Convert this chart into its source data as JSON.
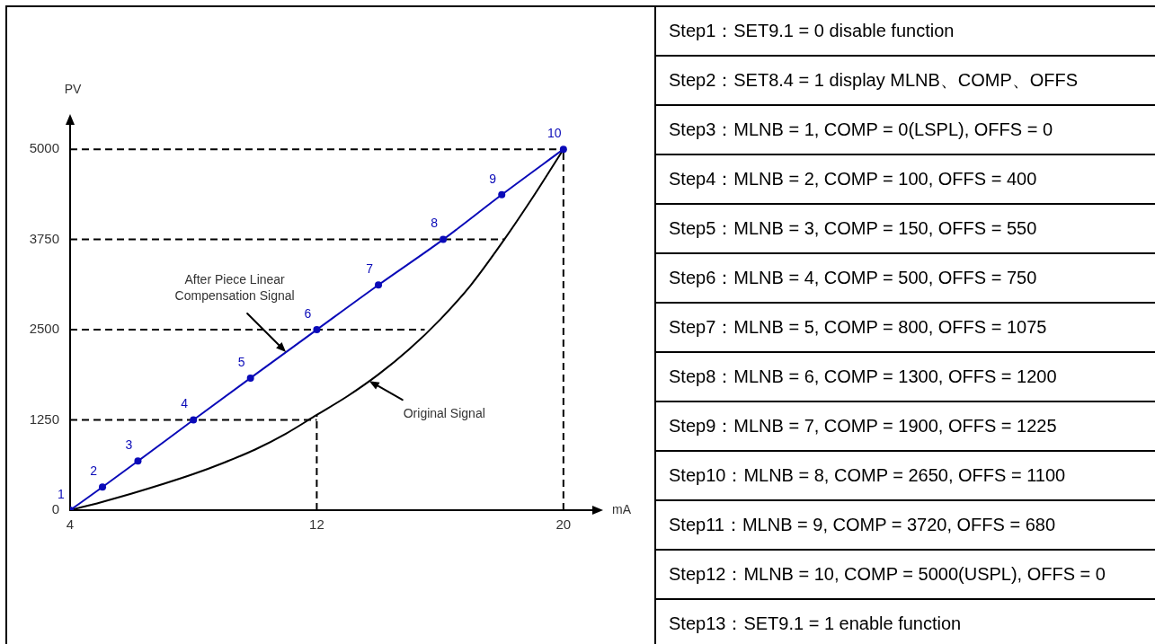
{
  "chart_data": [
    {
      "type": "line",
      "xlabel": "mA",
      "ylabel": "PV",
      "xlim": [
        4,
        21.2
      ],
      "ylim": [
        0,
        5450
      ],
      "xticks": [
        4,
        12,
        20
      ],
      "yticks": [
        0,
        1250,
        2500,
        3750,
        5000
      ],
      "series": [
        {
          "color": "#0a0ab8",
          "marker": "circle",
          "x": [
            4,
            5.05,
            6.2,
            8,
            9.85,
            12,
            14,
            16.1,
            18,
            20
          ],
          "values": [
            0,
            320,
            680,
            1250,
            1830,
            2500,
            3120,
            3750,
            4370,
            5000
          ]
        },
        {
          "color": "#000000",
          "marker": "none",
          "x": [
            4,
            5,
            6,
            7,
            8,
            9,
            10,
            11,
            12,
            13,
            14,
            15,
            16,
            17,
            18,
            19,
            20
          ],
          "values": [
            0,
            110,
            230,
            360,
            500,
            660,
            840,
            1060,
            1320,
            1580,
            1880,
            2230,
            2640,
            3120,
            3700,
            4330,
            5000
          ]
        },
        {
          "color": "#000000",
          "marker": "none",
          "line_style": "dashed",
          "x": [
            4,
            20
          ],
          "values": [
            5000,
            5000
          ]
        },
        {
          "color": "#000000",
          "marker": "none",
          "line_style": "dashed",
          "x": [
            4,
            18.1
          ],
          "values": [
            3750,
            3750
          ]
        },
        {
          "color": "#000000",
          "marker": "none",
          "line_style": "dashed",
          "x": [
            4,
            15.5
          ],
          "values": [
            2500,
            2500
          ]
        },
        {
          "color": "#000000",
          "marker": "none",
          "line_style": "dashed",
          "x": [
            4,
            12
          ],
          "values": [
            1250,
            1250
          ]
        },
        {
          "color": "#000000",
          "marker": "none",
          "line_style": "dashed",
          "x": [
            12,
            12
          ],
          "values": [
            0,
            1320
          ]
        },
        {
          "color": "#000000",
          "marker": "none",
          "line_style": "dashed",
          "x": [
            20,
            20
          ],
          "values": [
            0,
            5000
          ]
        }
      ],
      "annotations": [
        {
          "text": "1",
          "x": 4,
          "y": 0
        },
        {
          "text": "2",
          "x": 5.05,
          "y": 320
        },
        {
          "text": "3",
          "x": 6.2,
          "y": 680
        },
        {
          "text": "4",
          "x": 8,
          "y": 1250
        },
        {
          "text": "5",
          "x": 9.85,
          "y": 1830
        },
        {
          "text": "6",
          "x": 12,
          "y": 2500
        },
        {
          "text": "7",
          "x": 14,
          "y": 3120
        },
        {
          "text": "8",
          "x": 16.1,
          "y": 3750
        },
        {
          "text": "9",
          "x": 18,
          "y": 4370
        },
        {
          "text": "10",
          "x": 20,
          "y": 5000
        },
        {
          "text": "After Piece Linear Compensation Signal",
          "x": 11,
          "y": 2190
        },
        {
          "text": "Original Signal",
          "x": 13.7,
          "y": 1790
        }
      ]
    },
    {
      "type": "other",
      "annotations": [
        "Step1：SET9.1 = 0 disable function",
        "Step2：SET8.4 = 1 display MLNB、COMP、OFFS",
        "Step3：MLNB = 1, COMP = 0(LSPL), OFFS = 0",
        "Step4：MLNB = 2, COMP = 100, OFFS = 400",
        "Step5：MLNB = 3, COMP = 150, OFFS = 550",
        "Step6：MLNB = 4, COMP = 500, OFFS = 750",
        "Step7：MLNB = 5, COMP = 800, OFFS = 1075",
        "Step8：MLNB = 6, COMP = 1300, OFFS = 1200",
        "Step9：MLNB = 7, COMP = 1900, OFFS = 1225",
        "Step10：MLNB = 8, COMP = 2650, OFFS = 1100",
        "Step11：MLNB = 9, COMP = 3720, OFFS = 680",
        "Step12：MLNB = 10, COMP = 5000(USPL), OFFS = 0",
        "Step13：SET9.1 = 1 enable function"
      ]
    }
  ]
}
